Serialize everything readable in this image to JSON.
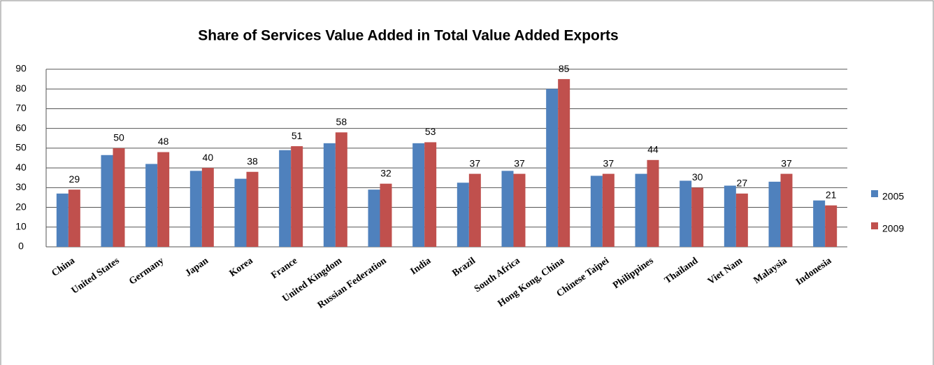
{
  "chart_data": {
    "type": "bar",
    "title": "Share of Services Value Added  in Total Value Added Exports",
    "categories": [
      "China",
      "United States",
      "Germany",
      "Japan",
      "Korea",
      "France",
      "United Kingdom",
      "Russian Federation",
      "India",
      "Brazil",
      "South Africa",
      "Hong Kong, China",
      "Chinese Taipei",
      "Philippines",
      "Thailand",
      "Viet Nam",
      "Malaysia",
      "Indonesia"
    ],
    "series": [
      {
        "name": "2005",
        "color": "#4f81bd",
        "values": [
          27,
          46.5,
          42,
          38.5,
          34.5,
          49,
          52.5,
          29,
          52.5,
          32.5,
          38.5,
          80,
          36,
          37,
          33.5,
          31,
          33,
          23.5
        ]
      },
      {
        "name": "2009",
        "color": "#c0504d",
        "values": [
          29,
          50,
          48,
          40,
          38,
          51,
          58,
          32,
          53,
          37,
          37,
          85,
          37,
          44,
          30,
          27,
          37,
          21
        ],
        "data_labels": true
      }
    ],
    "ylim": [
      0,
      90
    ],
    "yticks": [
      0,
      10,
      20,
      30,
      40,
      50,
      60,
      70,
      80,
      90
    ],
    "grid": true,
    "legend": "right"
  }
}
